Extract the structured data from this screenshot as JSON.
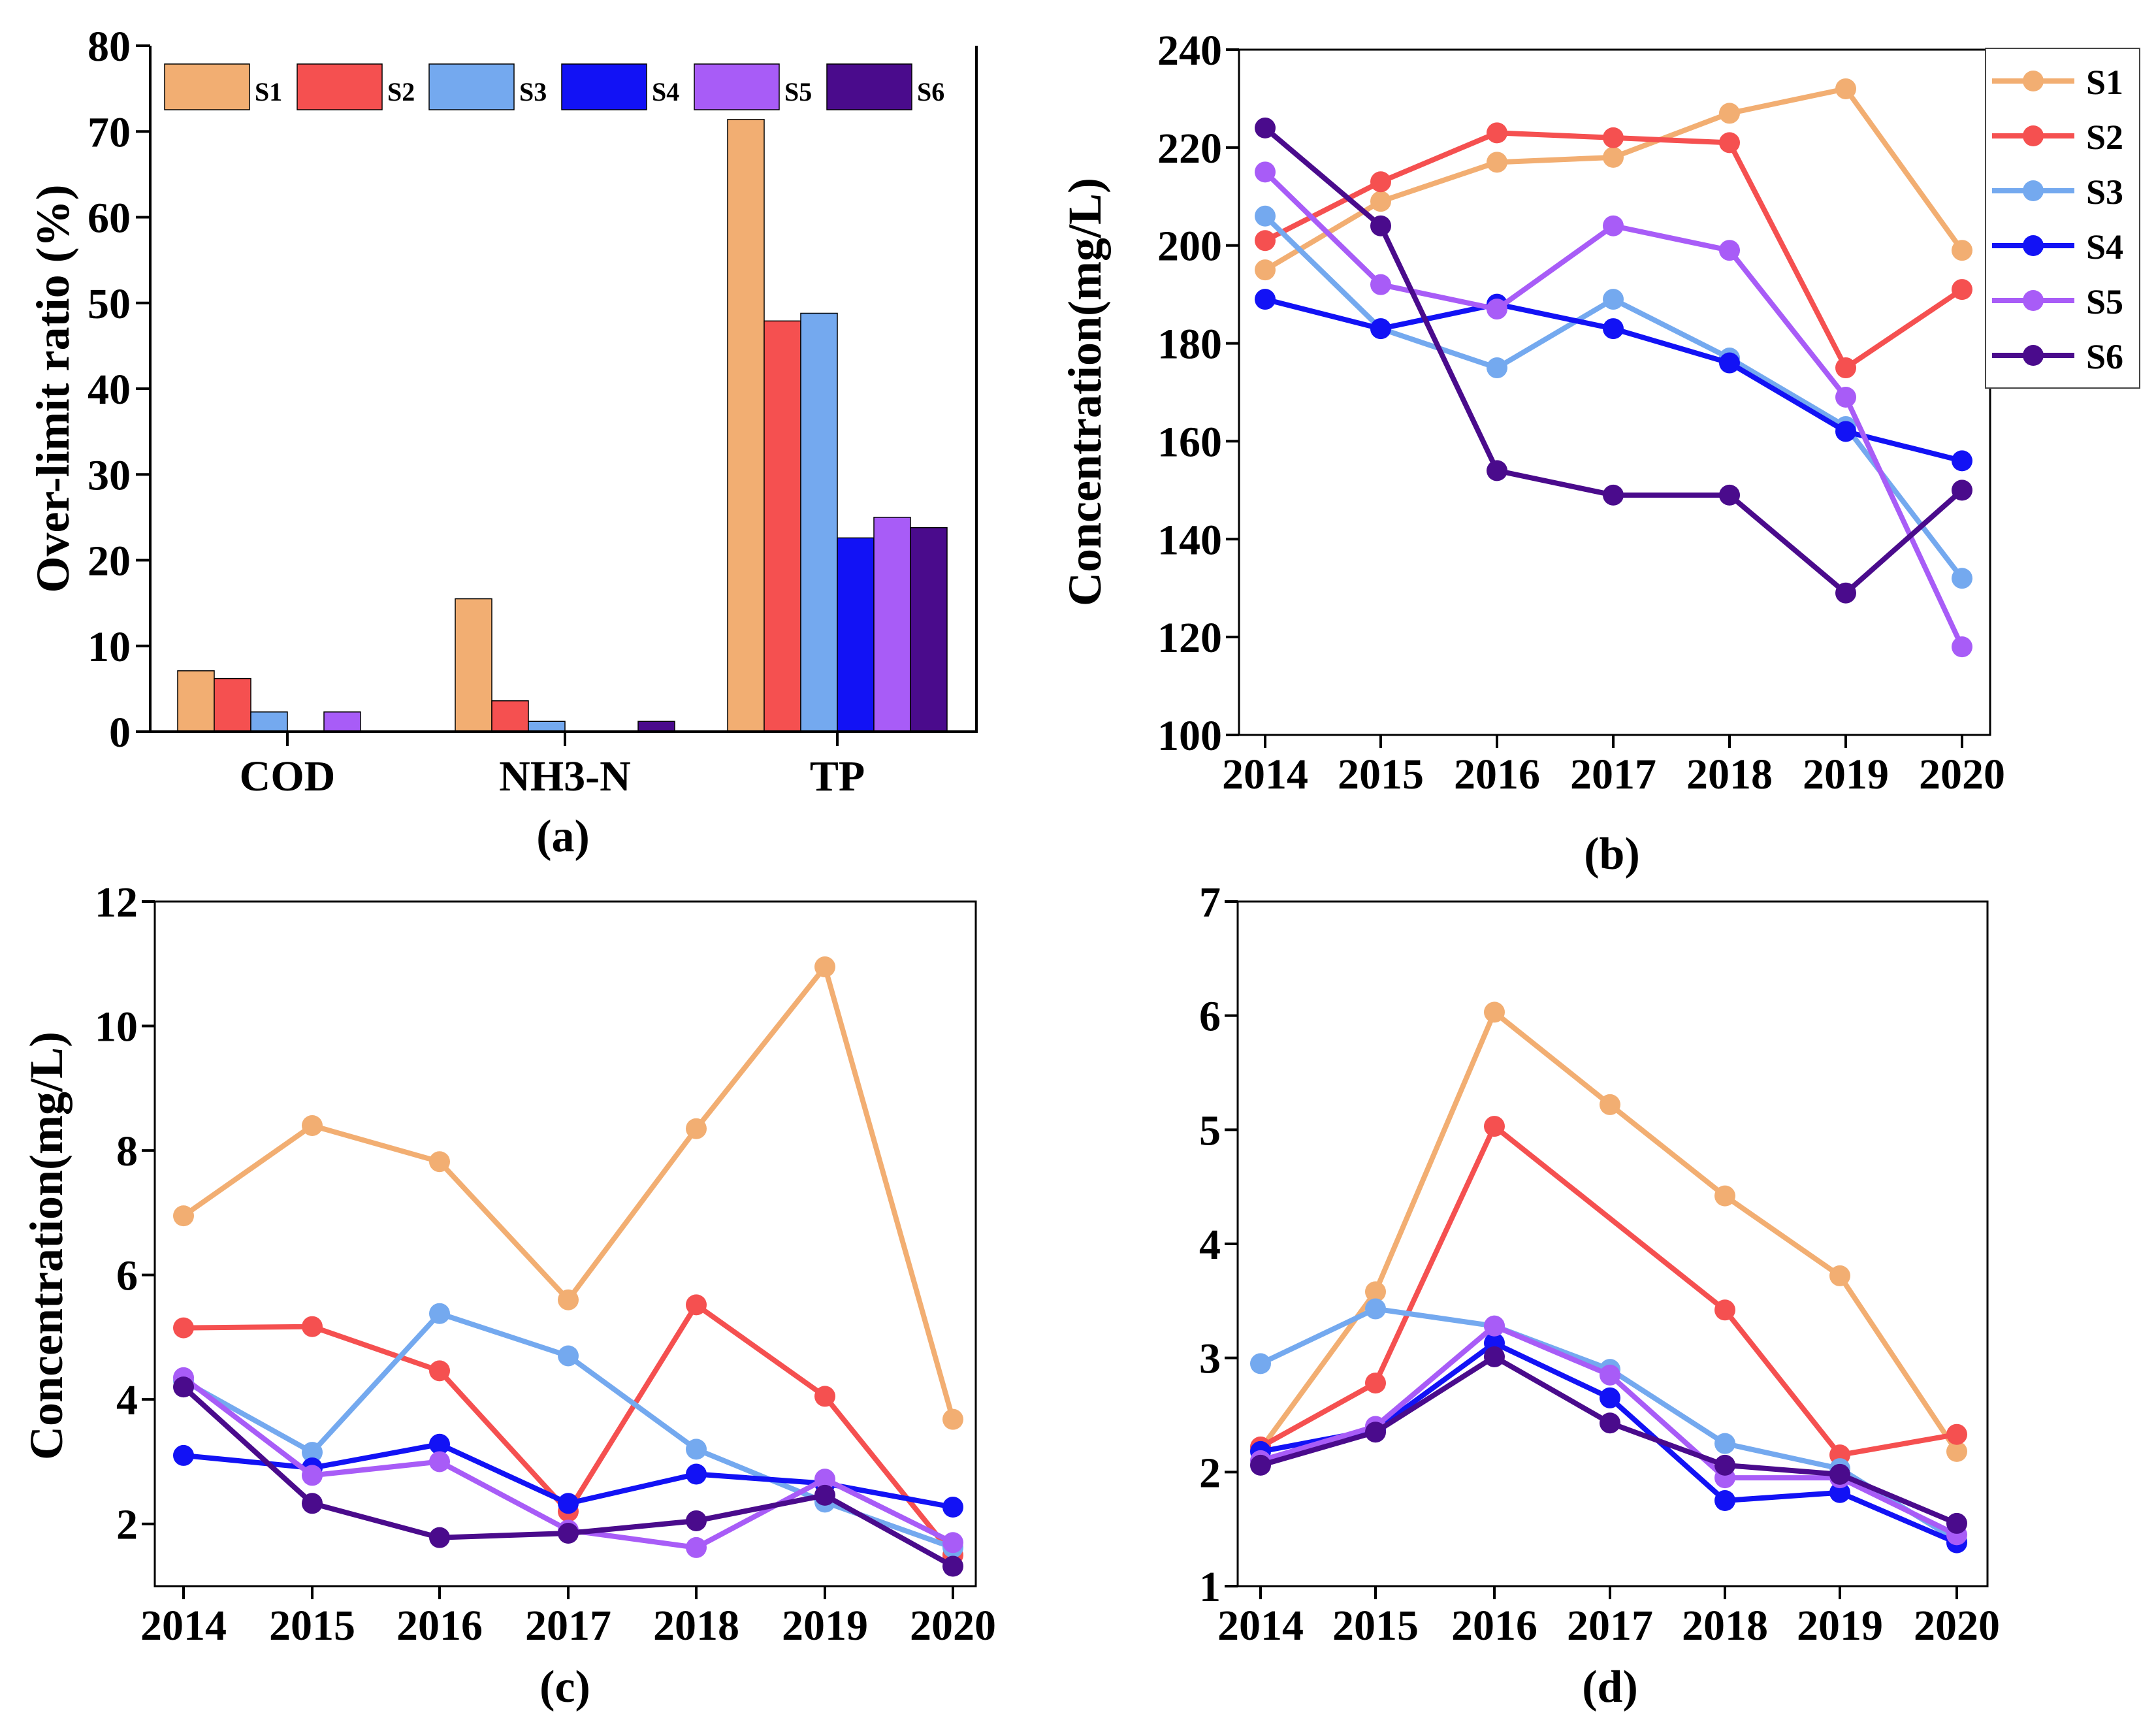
{
  "colors": {
    "S1": "#f2ae72",
    "S2": "#f55050",
    "S3": "#74a9ef",
    "S4": "#1212f5",
    "S5": "#a85cf7",
    "S6": "#4a0b8c"
  },
  "chart_data": [
    {
      "type": "bar",
      "panel_label": "(a)",
      "ylabel": "Over-limit ratio (%)",
      "xlabel": "",
      "ylim": [
        0,
        80
      ],
      "yticks": [
        0,
        10,
        20,
        30,
        40,
        50,
        60,
        70,
        80
      ],
      "categories": [
        "COD",
        "NH3-N",
        "TP"
      ],
      "legend_position": "top",
      "series": [
        {
          "name": "S1",
          "values": [
            7.1,
            15.5,
            71.4
          ]
        },
        {
          "name": "S2",
          "values": [
            6.2,
            3.6,
            47.9
          ]
        },
        {
          "name": "S3",
          "values": [
            2.3,
            1.2,
            48.8
          ]
        },
        {
          "name": "S4",
          "values": [
            0,
            0,
            22.6
          ]
        },
        {
          "name": "S5",
          "values": [
            2.3,
            0,
            25.0
          ]
        },
        {
          "name": "S6",
          "values": [
            0,
            1.2,
            23.8
          ]
        }
      ]
    },
    {
      "type": "line",
      "panel_label": "(b)",
      "ylabel": "Concentration(mg/L)",
      "xlabel": "",
      "x": [
        "2014",
        "2015",
        "2016",
        "2017",
        "2018",
        "2019",
        "2020"
      ],
      "ylim": [
        100,
        240
      ],
      "yticks": [
        100,
        120,
        140,
        160,
        180,
        200,
        220,
        240
      ],
      "legend_position": "top-right",
      "series": [
        {
          "name": "S1",
          "values": [
            195,
            209,
            217,
            218,
            227,
            232,
            199
          ]
        },
        {
          "name": "S2",
          "values": [
            201,
            213,
            223,
            222,
            221,
            175,
            191
          ]
        },
        {
          "name": "S3",
          "values": [
            206,
            183,
            175,
            189,
            177,
            163,
            132
          ]
        },
        {
          "name": "S4",
          "values": [
            189,
            183,
            188,
            183,
            176,
            162,
            156
          ]
        },
        {
          "name": "S5",
          "values": [
            215,
            192,
            187,
            204,
            199,
            169,
            118
          ]
        },
        {
          "name": "S6",
          "values": [
            224,
            204,
            154,
            149,
            149,
            129,
            150
          ]
        }
      ]
    },
    {
      "type": "line",
      "panel_label": "(c)",
      "ylabel": "Concentration(mg/L)",
      "xlabel": "",
      "x": [
        "2014",
        "2015",
        "2016",
        "2017",
        "2018",
        "2019",
        "2020"
      ],
      "ylim": [
        1,
        12
      ],
      "yticks": [
        2,
        4,
        6,
        8,
        10,
        12
      ],
      "series": [
        {
          "name": "S1",
          "values": [
            6.95,
            8.4,
            7.82,
            5.6,
            8.35,
            10.95,
            3.68
          ]
        },
        {
          "name": "S2",
          "values": [
            5.15,
            5.17,
            4.46,
            2.2,
            5.52,
            4.05,
            1.5
          ]
        },
        {
          "name": "S3",
          "values": [
            4.3,
            3.15,
            5.38,
            4.7,
            3.2,
            2.35,
            1.62
          ]
        },
        {
          "name": "S4",
          "values": [
            3.1,
            2.9,
            3.28,
            2.33,
            2.8,
            2.65,
            2.27
          ]
        },
        {
          "name": "S5",
          "values": [
            4.35,
            2.78,
            3.0,
            1.9,
            1.62,
            2.72,
            1.7
          ]
        },
        {
          "name": "S6",
          "values": [
            4.2,
            2.33,
            1.78,
            1.85,
            2.05,
            2.46,
            1.32
          ]
        }
      ]
    },
    {
      "type": "line",
      "panel_label": "(d)",
      "ylabel": "",
      "xlabel": "",
      "x": [
        "2014",
        "2015",
        "2016",
        "2017",
        "2018",
        "2019",
        "2020"
      ],
      "ylim": [
        1,
        7
      ],
      "yticks": [
        1,
        2,
        3,
        4,
        5,
        6,
        7
      ],
      "series": [
        {
          "name": "S1",
          "values": [
            2.2,
            3.58,
            6.03,
            5.22,
            4.42,
            3.72,
            2.18
          ]
        },
        {
          "name": "S2",
          "values": [
            2.22,
            2.78,
            5.03,
            null,
            3.42,
            2.15,
            2.33
          ]
        },
        {
          "name": "S3",
          "values": [
            2.95,
            3.43,
            3.28,
            2.9,
            2.25,
            2.03,
            1.4
          ]
        },
        {
          "name": "S4",
          "values": [
            2.18,
            2.37,
            3.13,
            2.65,
            1.75,
            1.82,
            1.38
          ]
        },
        {
          "name": "S5",
          "values": [
            2.1,
            2.4,
            3.28,
            2.85,
            1.95,
            1.95,
            1.45
          ]
        },
        {
          "name": "S6",
          "values": [
            2.06,
            2.35,
            3.01,
            2.43,
            2.06,
            1.98,
            1.55
          ]
        }
      ]
    }
  ]
}
